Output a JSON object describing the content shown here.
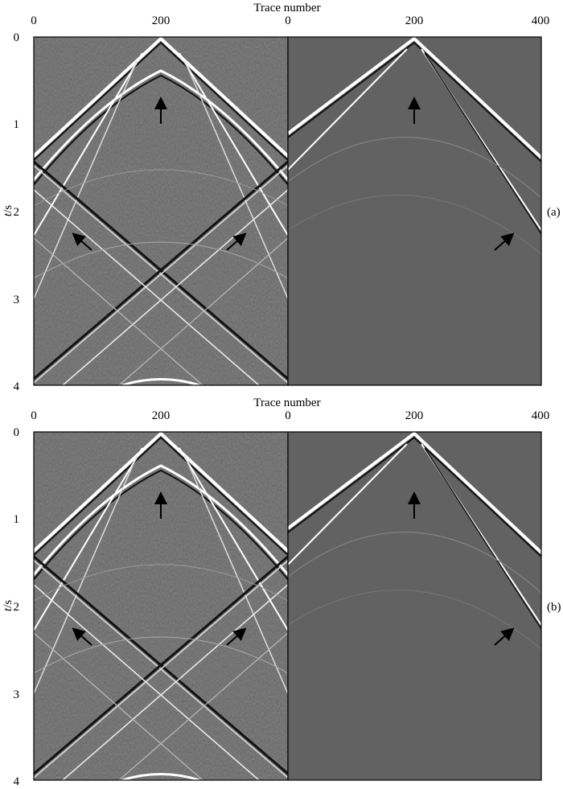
{
  "colors": {
    "background": "#626262",
    "event_bright": "#ffffff",
    "event_dark": "#111111",
    "frame": "#000000",
    "arrow": "#000000"
  },
  "x_axis": {
    "title": "Trace number",
    "left_ticks": [
      "0",
      "200",
      "0"
    ],
    "right_ticks": [
      "200",
      "400"
    ]
  },
  "y_axis": {
    "title_italic": "t",
    "title_unit": "/s",
    "ticks": [
      "0",
      "1",
      "2",
      "3",
      "4"
    ]
  },
  "panels": [
    {
      "tag": "(a)"
    },
    {
      "tag": "(b)"
    }
  ],
  "arrows": [
    {
      "description": "upward arrow at apex, left section"
    },
    {
      "description": "upward arrow at apex, right section"
    },
    {
      "description": "arrow pointing up-left, left section"
    },
    {
      "description": "arrow pointing up-right, left section"
    },
    {
      "description": "arrow pointing up-right, right section"
    }
  ]
}
